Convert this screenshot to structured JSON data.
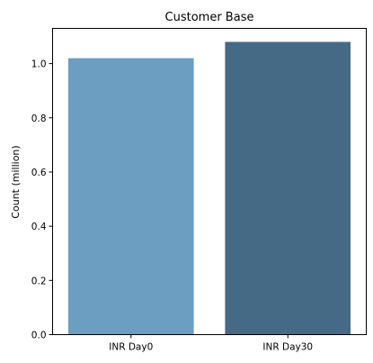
{
  "chart_data": {
    "type": "bar",
    "title": "Customer Base",
    "xlabel": "",
    "ylabel": "Count (million)",
    "categories": [
      "INR Day0",
      "INR Day30"
    ],
    "values": [
      1.02,
      1.08
    ],
    "colors": [
      "#6b9ec1",
      "#446a86"
    ],
    "ylim": [
      0,
      1.13
    ],
    "yticks": [
      0.0,
      0.2,
      0.4,
      0.6,
      0.8,
      1.0
    ],
    "ytick_labels": [
      "0.0",
      "0.2",
      "0.4",
      "0.6",
      "0.8",
      "1.0"
    ],
    "grid": false,
    "legend": "none"
  }
}
